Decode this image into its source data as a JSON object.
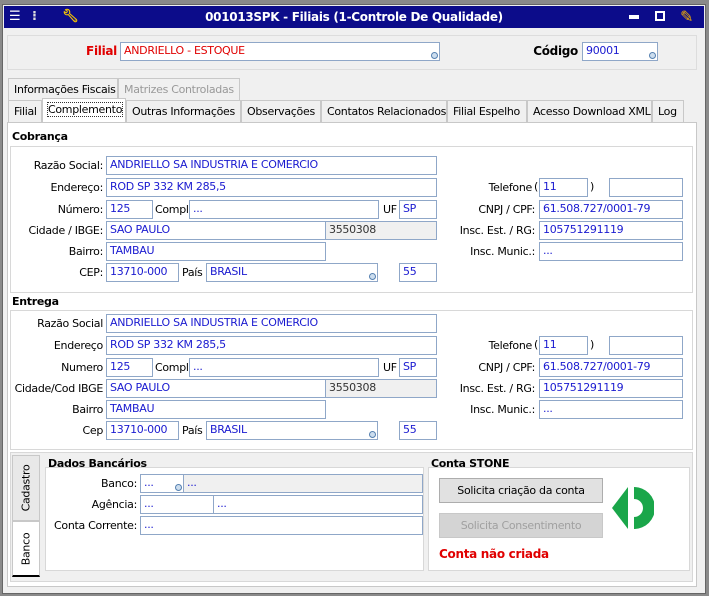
{
  "window": {
    "title": "001013SPK - Filiais (1-Controle De Qualidade)"
  },
  "header": {
    "filial_label": "Filial",
    "filial_value": "ANDRIELLO - ESTOQUE",
    "codigo_label": "Código",
    "codigo_value": "90001"
  },
  "tabs_top": [
    "Informações Fiscais",
    "Matrizes Controladas"
  ],
  "tabs": [
    "Filial",
    "Complemento",
    "Outras Informações",
    "Observações",
    "Contatos Relacionados",
    "Filial Espelho",
    "Acesso Download XML",
    "Log"
  ],
  "cobranca": {
    "title": "Cobrança",
    "razao_label": "Razão Social:",
    "razao": "ANDRIELLO SA INDUSTRIA E COMERCIO",
    "endereco_label": "Endereço:",
    "endereco": "ROD SP 332 KM 285,5",
    "numero_label": "Número:",
    "numero": "125",
    "compl_label": "Compl.",
    "compl": "...",
    "uf_label": "UF",
    "uf": "SP",
    "cidade_label": "Cidade / IBGE:",
    "cidade": "SAO PAULO",
    "ibge": "3550308",
    "bairro_label": "Bairro:",
    "bairro": "TAMBAU",
    "cep_label": "CEP:",
    "cep": "13710-000",
    "pais_label": "País",
    "pais": "BRASIL",
    "pais_code": "55",
    "telefone_label": "Telefone",
    "ddd": "11",
    "telefone": "",
    "cnpj_label": "CNPJ / CPF:",
    "cnpj": "61.508.727/0001-79",
    "ie_label": "Insc. Est. / RG:",
    "ie": "105751291119",
    "im_label": "Insc. Munic.:",
    "im": "..."
  },
  "entrega": {
    "title": "Entrega",
    "razao_label": "Razão Social",
    "razao": "ANDRIELLO SA INDUSTRIA E COMERCIO",
    "endereco_label": "Endereço",
    "endereco": "ROD SP 332 KM 285,5",
    "numero_label": "Numero",
    "numero": "125",
    "compl_label": "Compl.",
    "compl": "...",
    "uf_label": "UF",
    "uf": "SP",
    "cidade_label": "Cidade/Cod IBGE",
    "cidade": "SAO PAULO",
    "ibge": "3550308",
    "bairro_label": "Bairro",
    "bairro": "TAMBAU",
    "cep_label": "Cep",
    "cep": "13710-000",
    "pais_label": "País",
    "pais": "BRASIL",
    "pais_code": "55",
    "telefone_label": "Telefone",
    "ddd": "11",
    "telefone": "",
    "cnpj_label": "CNPJ / CPF:",
    "cnpj": "61.508.727/0001-79",
    "ie_label": "Insc. Est. / RG:",
    "ie": "105751291119",
    "im_label": "Insc. Munic.:",
    "im": "..."
  },
  "side_tabs": [
    "Cadastro",
    "Banco"
  ],
  "bancarios": {
    "title": "Dados Bancários",
    "banco_label": "Banco:",
    "banco_code": "...",
    "banco_name": "...",
    "agencia_label": "Agência:",
    "agencia": "...",
    "agencia_dv": "...",
    "conta_label": "Conta Corrente:",
    "conta": "..."
  },
  "stone": {
    "title": "Conta STONE",
    "btn_criar": "Solicita criação da conta",
    "btn_consent": "Solicita Consentimento",
    "status": "Conta não criada",
    "status_color": "#e00000",
    "logo_color": "#1aa64a"
  },
  "colors": {
    "titlebar": "#0c0c8a",
    "filial_label": "#e00000",
    "input_text": "#1a1ad0"
  }
}
